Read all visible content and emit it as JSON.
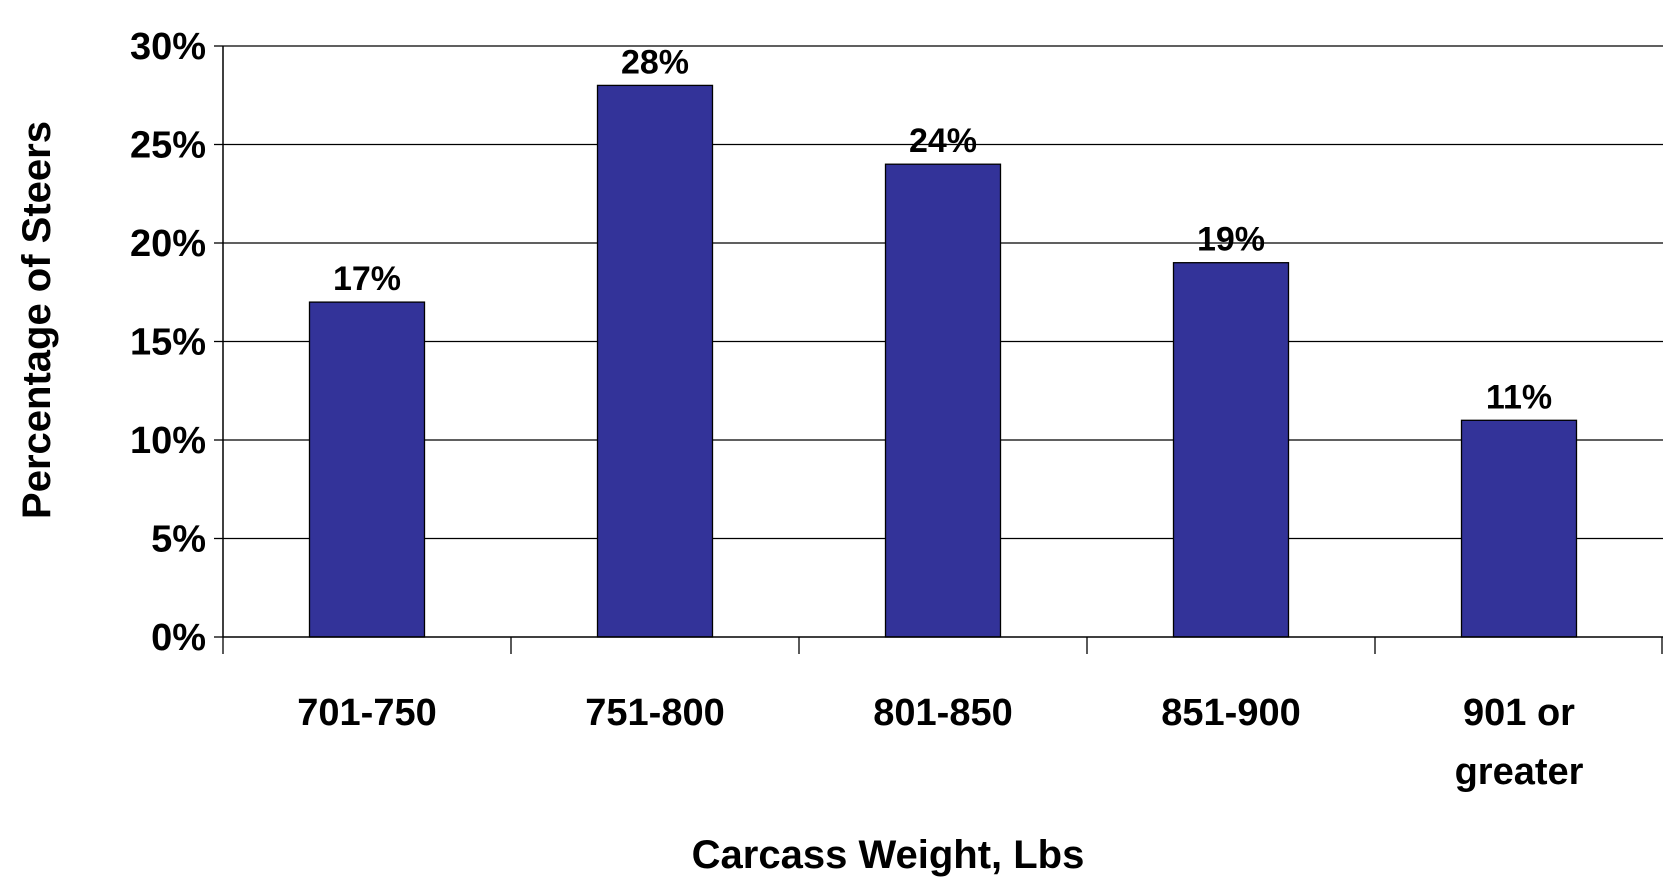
{
  "chart_data": {
    "type": "bar",
    "categories": [
      [
        "701-750"
      ],
      [
        "751-800"
      ],
      [
        "801-850"
      ],
      [
        "851-900"
      ],
      [
        "901 or",
        "greater"
      ]
    ],
    "values": [
      17,
      28,
      24,
      19,
      11
    ],
    "data_labels": [
      "17%",
      "28%",
      "24%",
      "19%",
      "11%"
    ],
    "xlabel": "Carcass Weight, Lbs",
    "ylabel": "Percentage of Steers",
    "ylim": [
      0,
      30
    ],
    "yticks": [
      0,
      5,
      10,
      15,
      20,
      25,
      30
    ],
    "ytick_labels": [
      "0%",
      "5%",
      "10%",
      "15%",
      "20%",
      "25%",
      "30%"
    ],
    "grid": true,
    "legend": "none",
    "bar_color": "#333399"
  }
}
